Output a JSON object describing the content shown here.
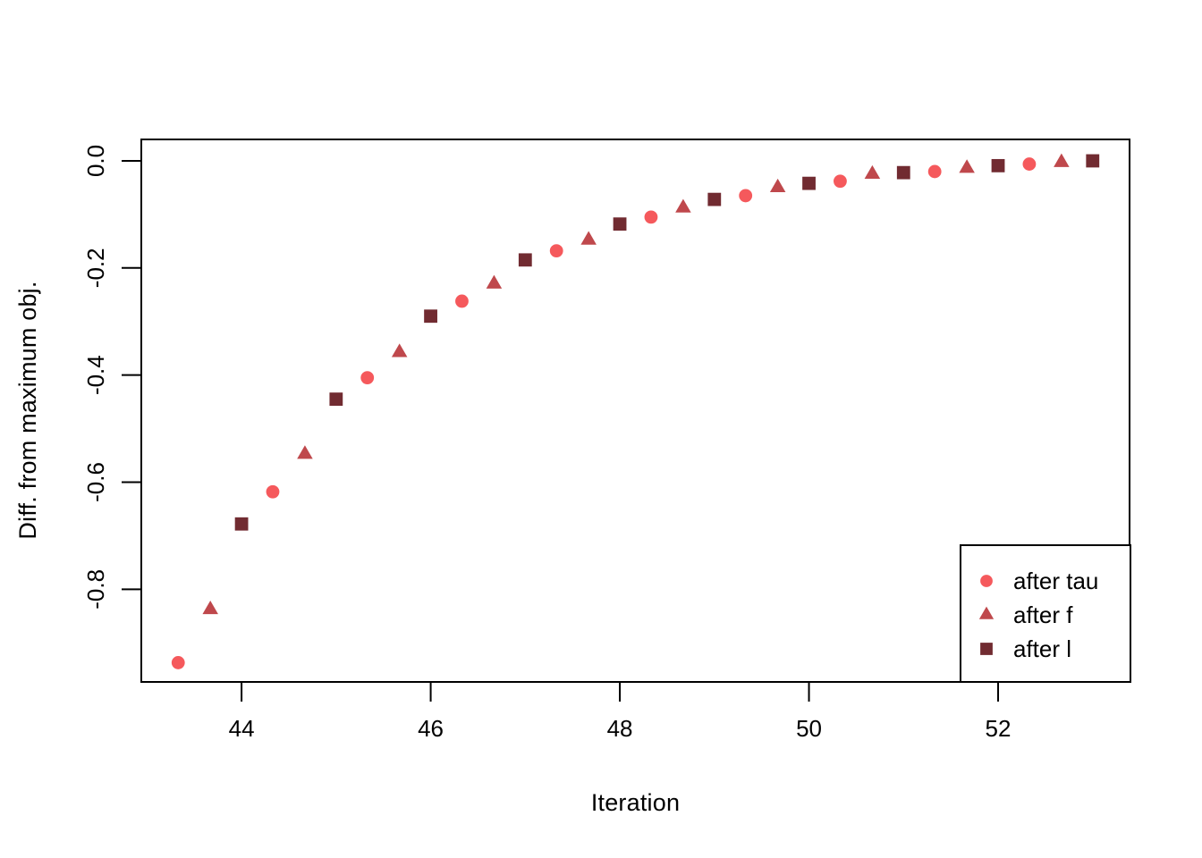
{
  "figure": {
    "background": "#ffffff",
    "border_color": "#000000",
    "text_color": "#000000"
  },
  "chart_data": {
    "type": "scatter",
    "title": "",
    "xlabel": "Iteration",
    "ylabel": "Diff. from maximum obj.",
    "xlim": [
      42.94,
      53.39
    ],
    "ylim": [
      -0.973,
      0.04
    ],
    "x_ticks": [
      44,
      46,
      48,
      50,
      52
    ],
    "y_ticks": [
      0.0,
      -0.2,
      -0.4,
      -0.6,
      -0.8
    ],
    "y_tick_labels": [
      "0.0",
      "-0.2",
      "-0.4",
      "-0.6",
      "-0.8"
    ],
    "grid": false,
    "legend_position": "bottom-right",
    "series": [
      {
        "name": "after tau",
        "marker": "circle",
        "color": "#F5595C",
        "x": [
          43.33,
          44.33,
          45.33,
          46.33,
          47.33,
          48.33,
          49.33,
          50.33,
          51.33,
          52.33
        ],
        "y": [
          -0.937,
          -0.618,
          -0.405,
          -0.262,
          -0.168,
          -0.105,
          -0.065,
          -0.038,
          -0.02,
          -0.006
        ]
      },
      {
        "name": "after f",
        "marker": "triangle",
        "color": "#BF484C",
        "x": [
          43.67,
          44.67,
          45.67,
          46.67,
          47.67,
          48.67,
          49.67,
          50.67,
          51.67,
          52.67
        ],
        "y": [
          -0.838,
          -0.548,
          -0.358,
          -0.23,
          -0.148,
          -0.088,
          -0.05,
          -0.025,
          -0.014,
          -0.003
        ]
      },
      {
        "name": "after l",
        "marker": "square",
        "color": "#712B31",
        "x": [
          44.0,
          45.0,
          46.0,
          47.0,
          48.0,
          49.0,
          50.0,
          51.0,
          52.0,
          53.0
        ],
        "y": [
          -0.678,
          -0.445,
          -0.29,
          -0.185,
          -0.118,
          -0.072,
          -0.042,
          -0.022,
          -0.009,
          0.0
        ]
      }
    ]
  }
}
